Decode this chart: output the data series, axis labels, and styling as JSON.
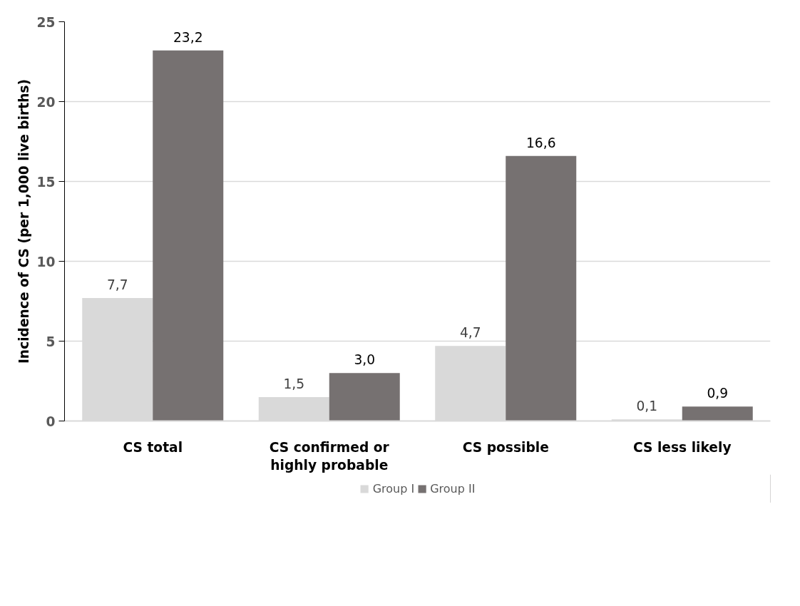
{
  "chart_data": {
    "type": "bar",
    "ylabel": "Incidence of CS (per 1,000 live births)",
    "categories": [
      "CS total",
      "CS confirmed or highly probable",
      "CS possible",
      "CS less likely"
    ],
    "series": [
      {
        "name": "Group I",
        "color": "#d9d9d9",
        "values": [
          7.7,
          1.5,
          4.7,
          0.1
        ],
        "value_labels": [
          "7,7",
          "1,5",
          "4,7",
          "0,1"
        ]
      },
      {
        "name": "Group II",
        "color": "#767171",
        "values": [
          23.2,
          3.0,
          16.6,
          0.9
        ],
        "value_labels": [
          "23,2",
          "3,0",
          "16,6",
          "0,9"
        ]
      }
    ],
    "ylim": [
      0,
      25
    ],
    "yticks": [
      0,
      5,
      10,
      15,
      20,
      25
    ],
    "grid": "y",
    "legend": "bottom"
  }
}
